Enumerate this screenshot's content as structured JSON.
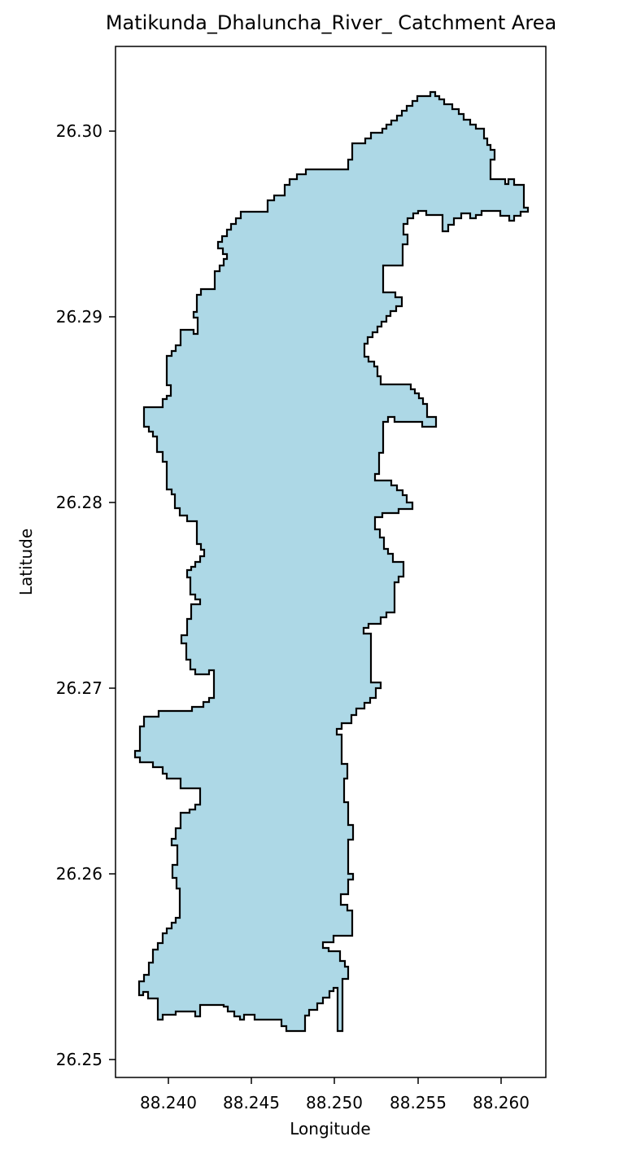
{
  "map": {
    "title": "Matikunda_Dhaluncha_River_ Catchment Area",
    "xlabel": "Longitude",
    "ylabel": "Latitude",
    "xlim": [
      88.2367,
      88.2627
    ],
    "ylim": [
      26.2491,
      26.3046
    ],
    "x_ticks": [
      "88.240",
      "88.245",
      "88.250",
      "88.255",
      "88.260"
    ],
    "y_ticks": [
      "26.25",
      "26.26",
      "26.27",
      "26.28",
      "26.29",
      "26.30"
    ],
    "fill_color": "#add8e6",
    "edge_color": "#000000"
  }
}
